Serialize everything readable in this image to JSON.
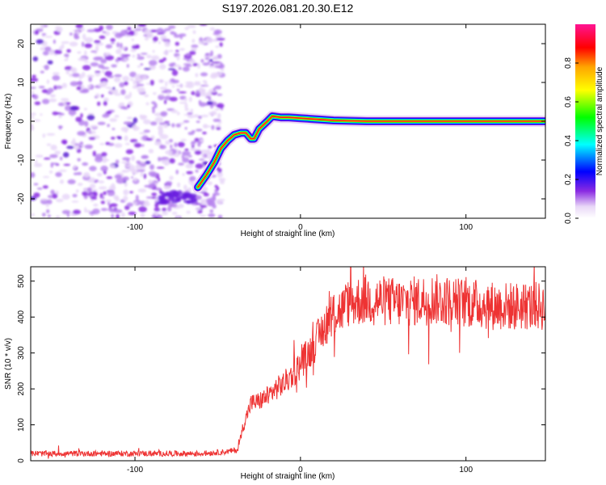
{
  "chart_data": [
    {
      "type": "heatmap",
      "title": "S197.2026.081.20.30.E12",
      "xlabel": "Height of straight line (km)",
      "ylabel": "Frequency (Hz)",
      "xlim": [
        -163,
        148
      ],
      "ylim": [
        -25,
        25
      ],
      "xticks": [
        -100,
        0,
        100
      ],
      "yticks": [
        -20,
        -10,
        0,
        10,
        20
      ],
      "colorbar": {
        "label": "Normalized spectral amplitude",
        "range": [
          0,
          1
        ],
        "ticks": [
          0.0,
          0.2,
          0.4,
          0.6,
          0.8
        ],
        "colors": [
          "#ffffff",
          "#8a2be2",
          "#0000ff",
          "#00ffff",
          "#00ff00",
          "#ffff00",
          "#ffa500",
          "#ff0000",
          "#ff1493"
        ]
      },
      "ridge": {
        "description": "dominant frequency trace",
        "x": [
          -62,
          -57,
          -52,
          -48,
          -44,
          -40,
          -36,
          -33,
          -30,
          -28,
          -25,
          -20,
          -17,
          -12,
          -7,
          0,
          10,
          20,
          40,
          60,
          80,
          100,
          120,
          148
        ],
        "y": [
          -17,
          -14,
          -10.5,
          -7,
          -5,
          -3.5,
          -3,
          -3,
          -4.5,
          -4.5,
          -2,
          0,
          1.3,
          1,
          1,
          0.8,
          0.5,
          0.2,
          0,
          0,
          0,
          0,
          0,
          0
        ]
      },
      "noise_region_x": [
        -163,
        -55
      ]
    },
    {
      "type": "line",
      "title": "",
      "xlabel": "Height of straight line (km)",
      "ylabel": "SNR (10 * v/v)",
      "xlim": [
        -163,
        148
      ],
      "ylim": [
        0,
        540
      ],
      "xticks": [
        -100,
        0,
        100
      ],
      "yticks": [
        0,
        100,
        200,
        300,
        400,
        500
      ],
      "color": "#ee3333",
      "series": [
        {
          "name": "SNR",
          "x": [
            -163,
            -140,
            -120,
            -100,
            -80,
            -60,
            -45,
            -38,
            -35,
            -30,
            -25,
            -20,
            -15,
            -10,
            -5,
            0,
            5,
            10,
            15,
            20,
            25,
            30,
            40,
            60,
            80,
            100,
            120,
            148
          ],
          "values": [
            20,
            20,
            20,
            20,
            20,
            20,
            25,
            30,
            90,
            160,
            165,
            180,
            200,
            215,
            240,
            270,
            300,
            335,
            380,
            410,
            420,
            440,
            450,
            440,
            450,
            440,
            430,
            430
          ]
        }
      ]
    }
  ]
}
